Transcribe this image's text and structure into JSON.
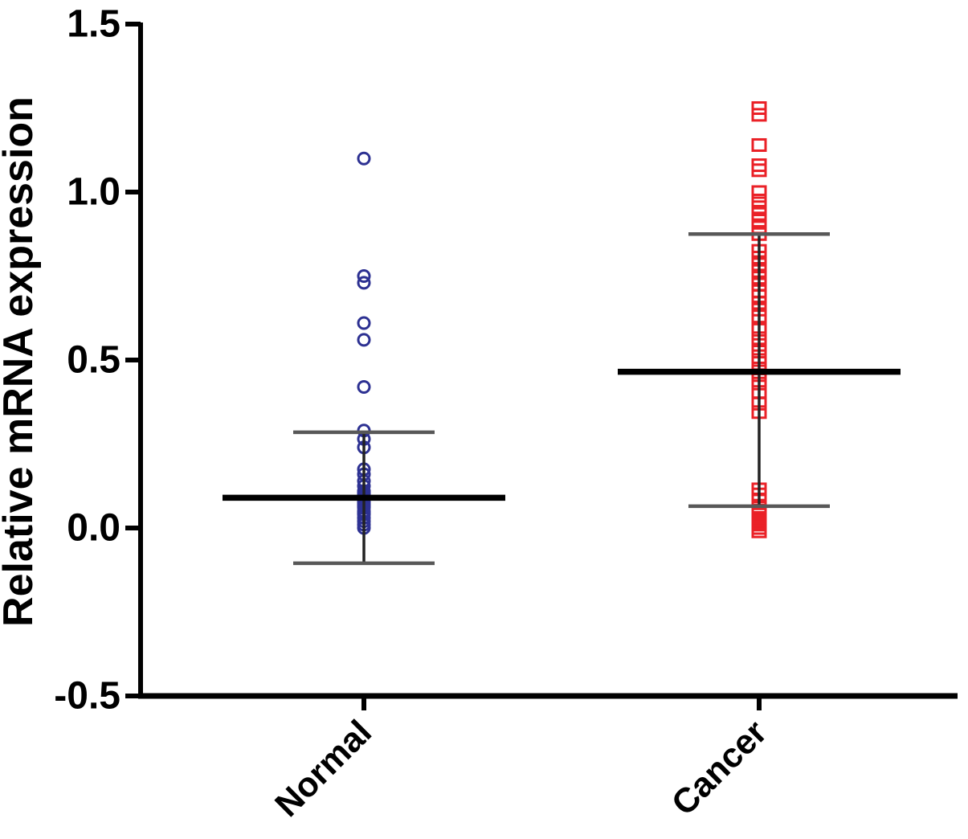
{
  "figure": {
    "background_color": "#ffffff",
    "axis_color": "#000000",
    "error_bar_cap_color": "#585858",
    "error_bar_stem_color": "#222222",
    "mean_line_color": "#000000"
  },
  "chart_data": {
    "type": "scatter",
    "subtype": "column-scatter-with-mean-and-error-bars",
    "title": "",
    "xlabel": "",
    "ylabel": "Relative mRNA expression",
    "ylim": [
      -0.5,
      1.5
    ],
    "grid": false,
    "legend": "none",
    "y_ticks": {
      "values": [
        1.5,
        1.0,
        0.5,
        0.0,
        -0.5
      ],
      "labels": [
        "1.5",
        "1.0",
        "0.5",
        "0.0",
        "-0.5"
      ]
    },
    "categories": [
      "Normal",
      "Cancer"
    ],
    "groups": [
      {
        "label": "Normal",
        "marker": "circle",
        "marker_color": "#2D3192",
        "mean": 0.09,
        "error_upper": 0.285,
        "error_lower": -0.105,
        "values": [
          1.1,
          0.75,
          0.73,
          0.61,
          0.56,
          0.42,
          0.29,
          0.265,
          0.24,
          0.175,
          0.16,
          0.14,
          0.125,
          0.11,
          0.105,
          0.1,
          0.095,
          0.09,
          0.085,
          0.08,
          0.075,
          0.07,
          0.065,
          0.06,
          0.05,
          0.045,
          0.04,
          0.03,
          0.02,
          0.01,
          0.0
        ]
      },
      {
        "label": "Cancer",
        "marker": "square",
        "marker_color": "#EA2127",
        "mean": 0.465,
        "error_upper": 0.875,
        "error_lower": 0.065,
        "values": [
          1.25,
          1.23,
          1.14,
          1.08,
          1.065,
          1.0,
          0.975,
          0.955,
          0.935,
          0.915,
          0.895,
          0.875,
          0.825,
          0.805,
          0.785,
          0.765,
          0.745,
          0.725,
          0.705,
          0.69,
          0.67,
          0.65,
          0.63,
          0.59,
          0.565,
          0.545,
          0.525,
          0.5,
          0.475,
          0.455,
          0.43,
          0.405,
          0.37,
          0.345,
          0.115,
          0.1,
          0.085,
          0.06,
          0.05,
          0.045,
          0.04,
          0.03,
          0.025,
          0.02,
          0.015,
          0.01,
          0.0,
          -0.01
        ]
      }
    ]
  }
}
